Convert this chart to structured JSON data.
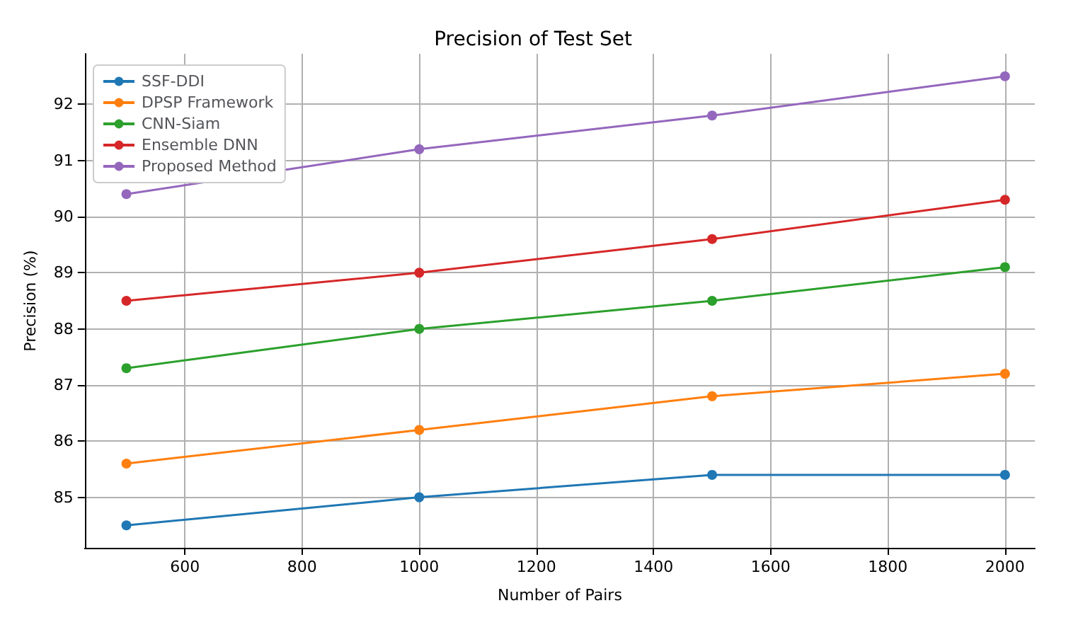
{
  "chart_data": {
    "type": "line",
    "title": "Precision of Test Set",
    "xlabel": "Number of Pairs",
    "ylabel": "Precision (%)",
    "x": [
      500,
      1000,
      1500,
      2000
    ],
    "series": [
      {
        "name": "SSF-DDI",
        "color": "#1f77b4",
        "values": [
          84.5,
          85.0,
          85.4,
          85.4
        ]
      },
      {
        "name": "DPSP Framework",
        "color": "#ff7f0e",
        "values": [
          85.6,
          86.2,
          86.8,
          87.2
        ]
      },
      {
        "name": "CNN-Siam",
        "color": "#2ca02c",
        "values": [
          87.3,
          88.0,
          88.5,
          89.1
        ]
      },
      {
        "name": "Ensemble DNN",
        "color": "#d62728",
        "values": [
          88.5,
          89.0,
          89.6,
          90.3
        ]
      },
      {
        "name": "Proposed Method",
        "color": "#9467bd",
        "values": [
          90.4,
          91.2,
          91.8,
          92.5
        ]
      }
    ],
    "xlim": [
      429,
      2051
    ],
    "xticks": [
      600,
      800,
      1000,
      1200,
      1400,
      1600,
      1800,
      2000
    ],
    "ylim": [
      84.1,
      92.9
    ],
    "yticks": [
      85,
      86,
      87,
      88,
      89,
      90,
      91,
      92
    ],
    "grid": true,
    "legend": "top left",
    "marker": "circle",
    "line_style": "solid"
  }
}
